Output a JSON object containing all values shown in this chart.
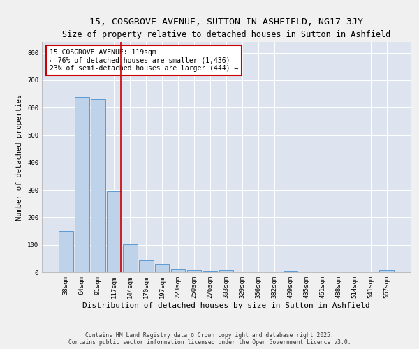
{
  "title": "15, COSGROVE AVENUE, SUTTON-IN-ASHFIELD, NG17 3JY",
  "subtitle": "Size of property relative to detached houses in Sutton in Ashfield",
  "xlabel": "Distribution of detached houses by size in Sutton in Ashfield",
  "ylabel": "Number of detached properties",
  "categories": [
    "38sqm",
    "64sqm",
    "91sqm",
    "117sqm",
    "144sqm",
    "170sqm",
    "197sqm",
    "223sqm",
    "250sqm",
    "276sqm",
    "303sqm",
    "329sqm",
    "356sqm",
    "382sqm",
    "409sqm",
    "435sqm",
    "461sqm",
    "488sqm",
    "514sqm",
    "541sqm",
    "567sqm"
  ],
  "values": [
    150,
    640,
    630,
    295,
    103,
    43,
    30,
    10,
    8,
    6,
    8,
    0,
    0,
    0,
    5,
    0,
    0,
    0,
    0,
    0,
    7
  ],
  "bar_color": "#bed3ea",
  "bar_edge_color": "#5b9bd5",
  "bg_color": "#dde4f0",
  "grid_color": "#ffffff",
  "marker_color": "#cc0000",
  "annotation_title": "15 COSGROVE AVENUE: 119sqm",
  "annotation_line1": "← 76% of detached houses are smaller (1,436)",
  "annotation_line2": "23% of semi-detached houses are larger (444) →",
  "annotation_box_color": "#ffffff",
  "annotation_box_edge": "#cc0000",
  "ylim": [
    0,
    840
  ],
  "yticks": [
    0,
    100,
    200,
    300,
    400,
    500,
    600,
    700,
    800
  ],
  "copyright_text": "Contains HM Land Registry data © Crown copyright and database right 2025.\nContains public sector information licensed under the Open Government Licence v3.0.",
  "title_fontsize": 9.5,
  "subtitle_fontsize": 8.5,
  "xlabel_fontsize": 8,
  "ylabel_fontsize": 7.5,
  "tick_fontsize": 6.5,
  "annot_fontsize": 7,
  "copyright_fontsize": 5.8
}
